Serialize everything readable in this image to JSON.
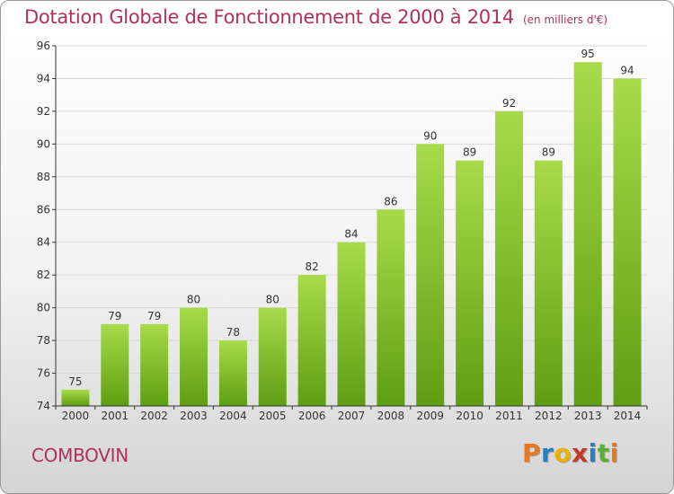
{
  "title": "Dotation Globale de Fonctionnement de 2000 à 2014",
  "subtitle": "(en milliers d'€)",
  "commune": "COMBOVIN",
  "logo": {
    "text": "Proxiti",
    "colors": [
      "#e87722",
      "#2a7fc1",
      "#e8b400",
      "#c0392b",
      "#2a7fc1",
      "#5cb02f",
      "#e87722"
    ]
  },
  "colors": {
    "title": "#b03060",
    "bar_top": "#a8db4a",
    "bar_bottom": "#5f9e12",
    "axis": "#333333",
    "grid": "#d9d9d9"
  },
  "chart_data": {
    "type": "bar",
    "categories": [
      "2000",
      "2001",
      "2002",
      "2003",
      "2004",
      "2005",
      "2006",
      "2007",
      "2008",
      "2009",
      "2010",
      "2011",
      "2012",
      "2013",
      "2014"
    ],
    "values": [
      75,
      79,
      79,
      80,
      78,
      80,
      82,
      84,
      86,
      90,
      89,
      92,
      89,
      95,
      94
    ],
    "ylim": [
      74,
      96
    ],
    "yticks": [
      74,
      76,
      78,
      80,
      82,
      84,
      86,
      88,
      90,
      92,
      94,
      96
    ],
    "grid": true,
    "data_labels": true
  }
}
